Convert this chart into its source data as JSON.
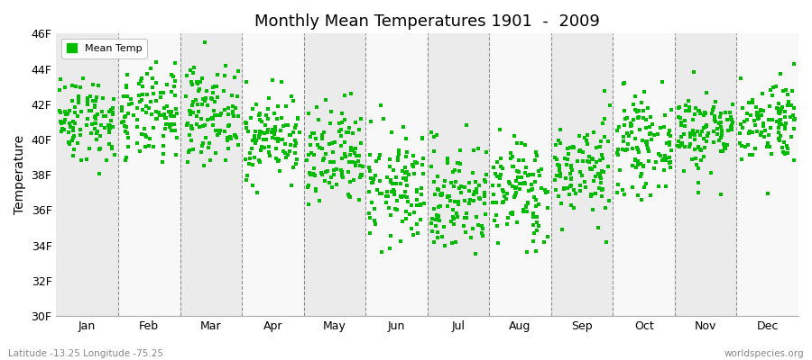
{
  "title": "Monthly Mean Temperatures 1901  -  2009",
  "ylabel": "Temperature",
  "xlabel_labels": [
    "Jan",
    "Feb",
    "Mar",
    "Apr",
    "May",
    "Jun",
    "Jul",
    "Aug",
    "Sep",
    "Oct",
    "Nov",
    "Dec"
  ],
  "ytick_labels": [
    "30F",
    "32F",
    "34F",
    "36F",
    "38F",
    "40F",
    "42F",
    "44F",
    "46F"
  ],
  "ytick_values": [
    30,
    32,
    34,
    36,
    38,
    40,
    42,
    44,
    46
  ],
  "ylim": [
    30,
    46
  ],
  "marker_color": "#00BB00",
  "marker": "s",
  "marker_size": 3,
  "legend_label": "Mean Temp",
  "bg_color": "#FFFFFF",
  "band_color_odd": "#EBEBEB",
  "band_color_even": "#F8F8F8",
  "footer_left": "Latitude -13.25 Longitude -75.25",
  "footer_right": "worldspecies.org",
  "years": 109,
  "monthly_means": [
    41.2,
    41.3,
    41.5,
    40.2,
    38.8,
    37.2,
    36.7,
    37.1,
    38.3,
    39.7,
    40.5,
    41.1
  ],
  "monthly_stds": [
    1.2,
    1.3,
    1.3,
    1.2,
    1.5,
    1.6,
    1.6,
    1.5,
    1.4,
    1.3,
    1.2,
    1.2
  ],
  "seed": 42
}
